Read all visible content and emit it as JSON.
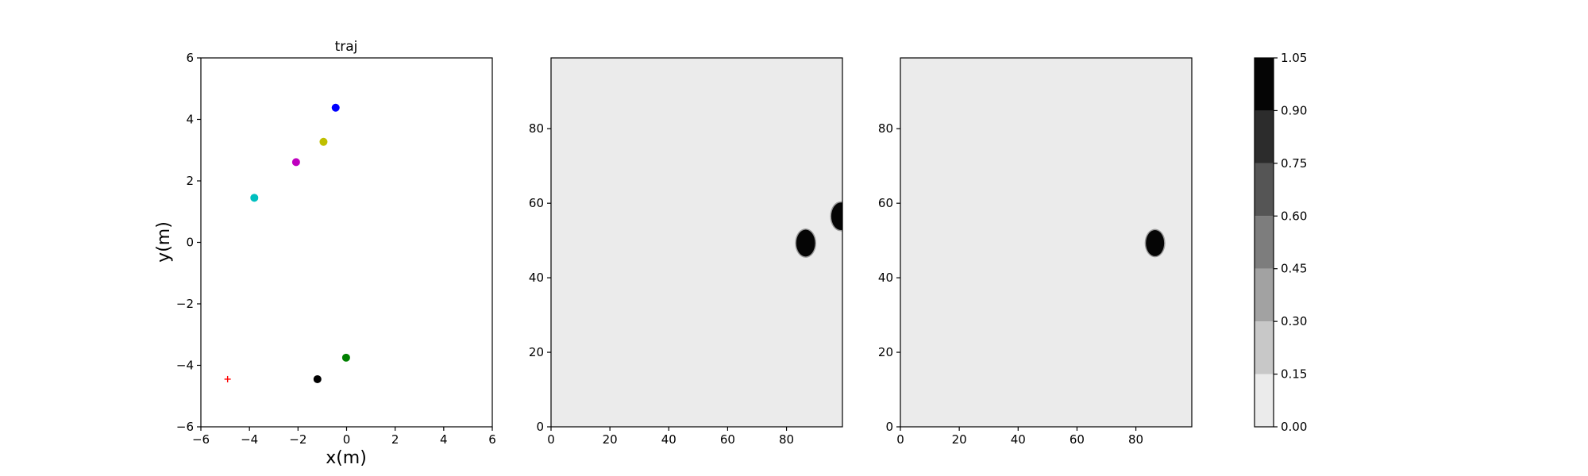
{
  "chart_data": [
    {
      "type": "scatter",
      "title": "traj",
      "xlabel": "x(m)",
      "ylabel": "y(m)",
      "xlim": [
        -6,
        6
      ],
      "ylim": [
        -6,
        6
      ],
      "xticks": [
        -6,
        -4,
        -2,
        0,
        2,
        4,
        6
      ],
      "yticks": [
        -6,
        -4,
        -2,
        0,
        2,
        4,
        6
      ],
      "xtick_labels": [
        "−6",
        "−4",
        "−2",
        "0",
        "2",
        "4",
        "6"
      ],
      "ytick_labels": [
        "−6",
        "−4",
        "−2",
        "0",
        "2",
        "4",
        "6"
      ],
      "grid": false,
      "points": [
        {
          "x": -0.45,
          "y": 4.38,
          "color": "#0000ff",
          "marker": "dot"
        },
        {
          "x": -0.95,
          "y": 3.27,
          "color": "#bfbf00",
          "marker": "dot"
        },
        {
          "x": -2.08,
          "y": 2.61,
          "color": "#bf00bf",
          "marker": "dot"
        },
        {
          "x": -3.8,
          "y": 1.45,
          "color": "#00bfbf",
          "marker": "dot"
        },
        {
          "x": -0.02,
          "y": -3.75,
          "color": "#008000",
          "marker": "dot"
        },
        {
          "x": -1.2,
          "y": -4.45,
          "color": "#000000",
          "marker": "dot"
        },
        {
          "x": -4.9,
          "y": -4.45,
          "color": "#ff0000",
          "marker": "plus"
        }
      ]
    },
    {
      "type": "heatmap",
      "title": "",
      "xlim": [
        0,
        99
      ],
      "ylim": [
        0,
        99
      ],
      "xticks": [
        0,
        20,
        40,
        60,
        80
      ],
      "yticks": [
        0,
        20,
        40,
        60,
        80
      ],
      "background_value": 0.07,
      "blobs": [
        {
          "cx": 86.5,
          "cy": 49.3,
          "rx": 3.2,
          "ry": 3.6,
          "value": 1.0
        },
        {
          "cx": 98.5,
          "cy": 56.5,
          "rx": 3.3,
          "ry": 3.7,
          "value": 1.0
        }
      ]
    },
    {
      "type": "heatmap",
      "title": "",
      "xlim": [
        0,
        99
      ],
      "ylim": [
        0,
        99
      ],
      "xticks": [
        0,
        20,
        40,
        60,
        80
      ],
      "yticks": [
        0,
        20,
        40,
        60,
        80
      ],
      "background_value": 0.07,
      "blobs": [
        {
          "cx": 86.5,
          "cy": 49.3,
          "rx": 3.1,
          "ry": 3.5,
          "value": 1.0
        }
      ]
    }
  ],
  "colorbar": {
    "ticks": [
      "0.00",
      "0.15",
      "0.30",
      "0.45",
      "0.60",
      "0.75",
      "0.90",
      "1.05"
    ],
    "range": [
      0.0,
      1.05
    ],
    "levels": [
      {
        "from": 0.0,
        "to": 0.15,
        "color": "#ebebeb"
      },
      {
        "from": 0.15,
        "to": 0.3,
        "color": "#c8c8c8"
      },
      {
        "from": 0.3,
        "to": 0.45,
        "color": "#a2a2a2"
      },
      {
        "from": 0.45,
        "to": 0.6,
        "color": "#7d7d7d"
      },
      {
        "from": 0.6,
        "to": 0.75,
        "color": "#555555"
      },
      {
        "from": 0.75,
        "to": 0.9,
        "color": "#2c2c2c"
      },
      {
        "from": 0.9,
        "to": 1.05,
        "color": "#050505"
      }
    ]
  }
}
